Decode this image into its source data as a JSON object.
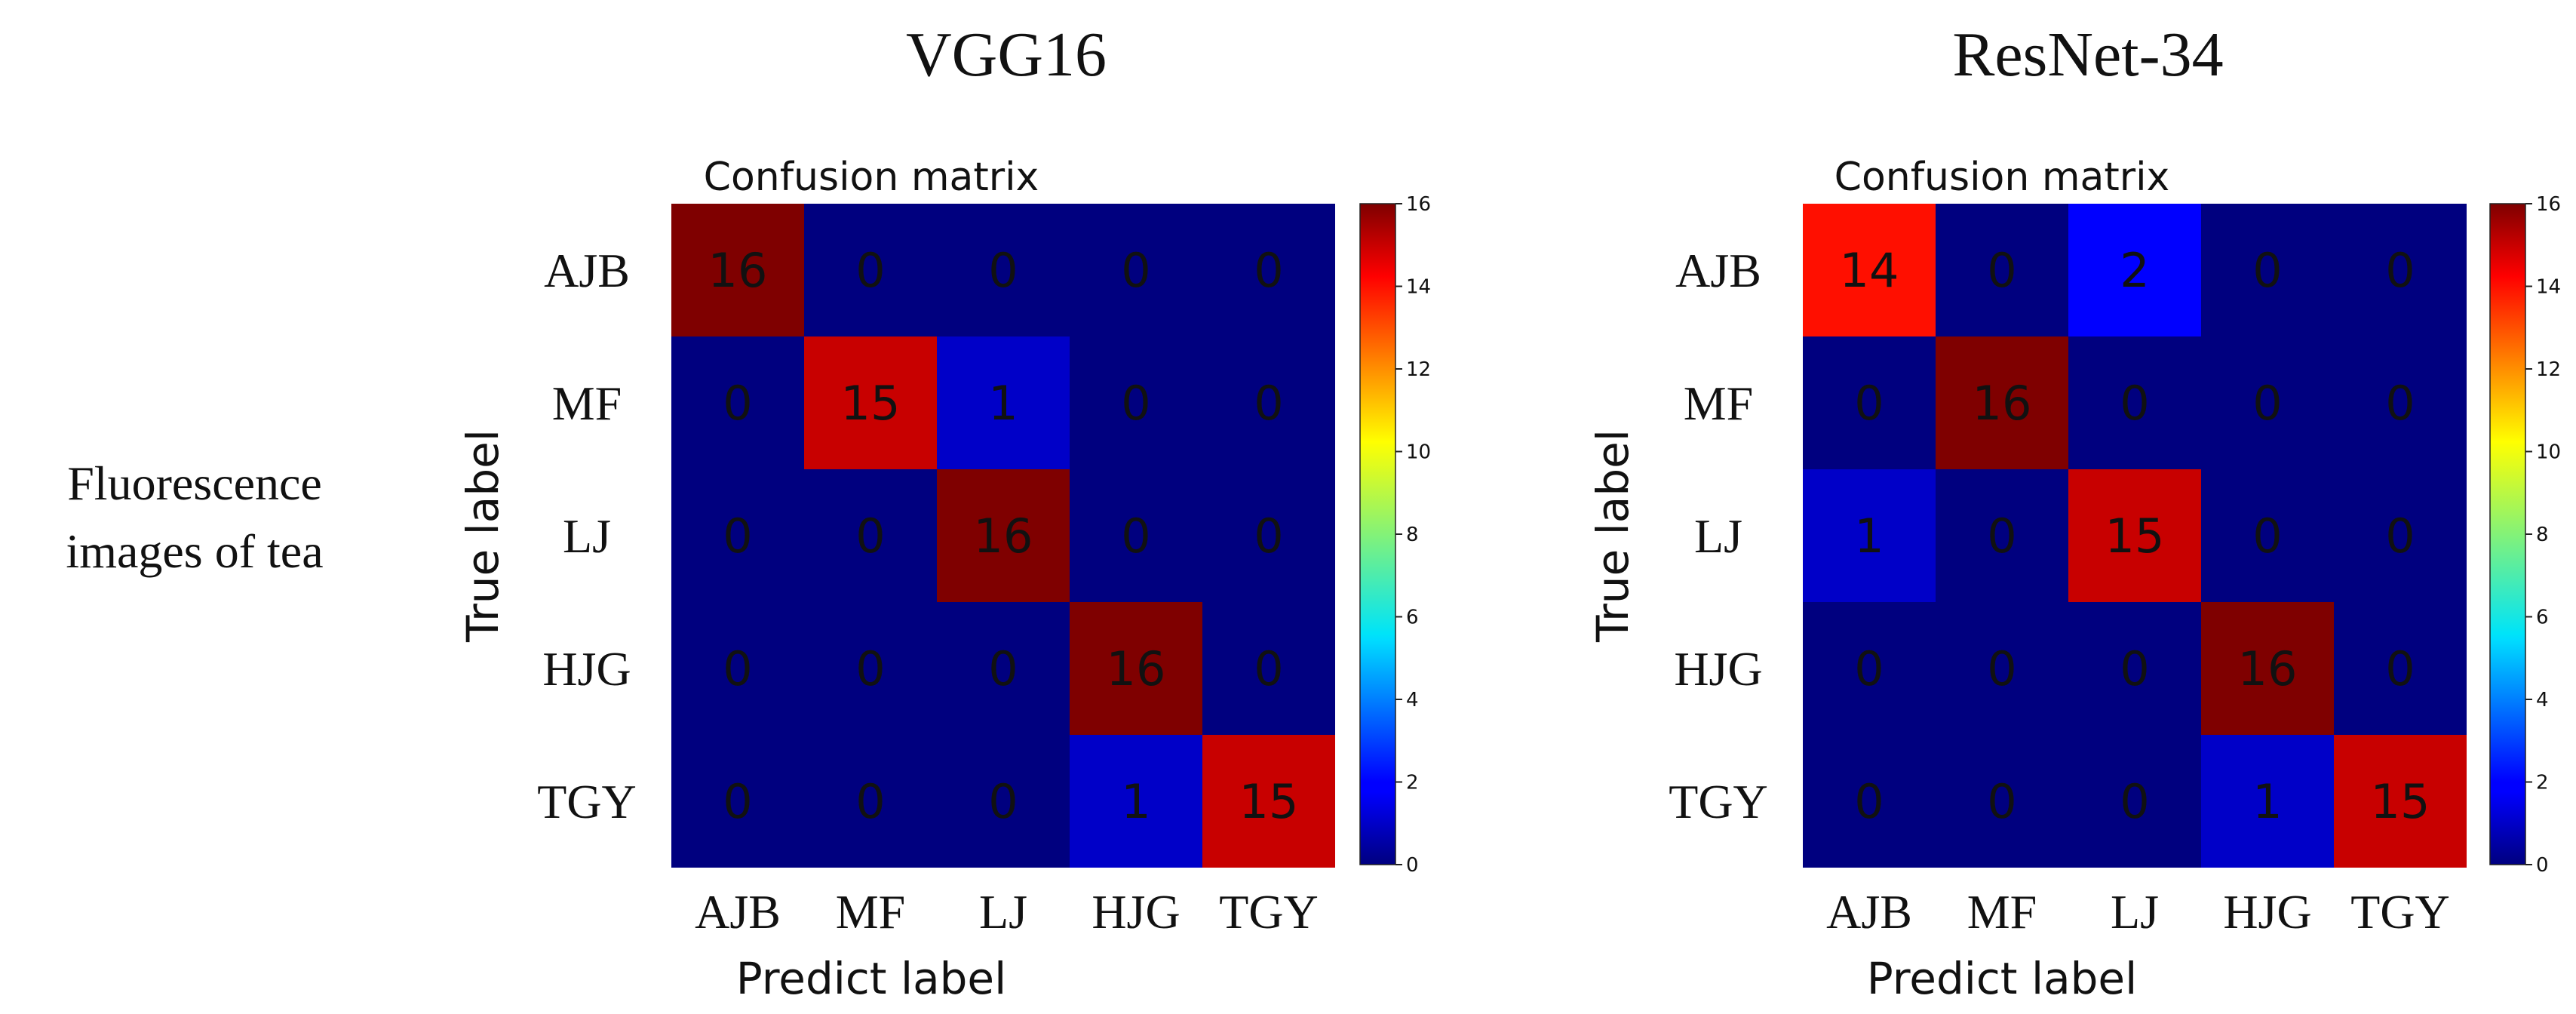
{
  "chart_data": [
    {
      "type": "heatmap",
      "model": "VGG16",
      "title": "Confusion matrix",
      "xlabel": "Predict label",
      "ylabel": "True label",
      "categories": [
        "AJB",
        "MF",
        "LJ",
        "HJG",
        "TGY"
      ],
      "matrix": [
        [
          16,
          0,
          0,
          0,
          0
        ],
        [
          0,
          15,
          1,
          0,
          0
        ],
        [
          0,
          0,
          16,
          0,
          0
        ],
        [
          0,
          0,
          0,
          16,
          0
        ],
        [
          0,
          0,
          0,
          1,
          15
        ]
      ],
      "colorbar": {
        "range": [
          0,
          16
        ],
        "ticks": [
          0,
          2,
          4,
          6,
          8,
          10,
          12,
          14,
          16
        ],
        "colormap": "jet"
      }
    },
    {
      "type": "heatmap",
      "model": "ResNet-34",
      "title": "Confusion matrix",
      "xlabel": "Predict label",
      "ylabel": "True label",
      "categories": [
        "AJB",
        "MF",
        "LJ",
        "HJG",
        "TGY"
      ],
      "matrix": [
        [
          14,
          0,
          2,
          0,
          0
        ],
        [
          0,
          16,
          0,
          0,
          0
        ],
        [
          1,
          0,
          15,
          0,
          0
        ],
        [
          0,
          0,
          0,
          16,
          0
        ],
        [
          0,
          0,
          0,
          1,
          15
        ]
      ],
      "colorbar": {
        "range": [
          0,
          16
        ],
        "ticks": [
          0,
          2,
          4,
          6,
          8,
          10,
          12,
          14,
          16
        ],
        "colormap": "jet"
      }
    }
  ],
  "row_label": {
    "line1": "Fluorescence",
    "line2": "images of tea"
  }
}
